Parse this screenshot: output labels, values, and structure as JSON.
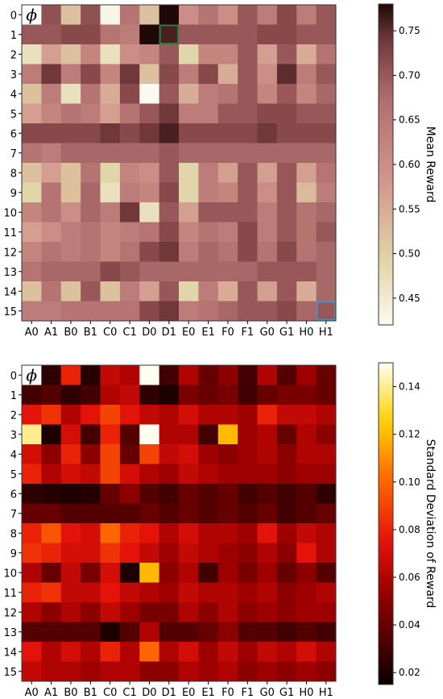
{
  "chart_data": [
    {
      "type": "heatmap",
      "colormap": "pink",
      "rows": [
        "0",
        "1",
        "2",
        "3",
        "4",
        "5",
        "6",
        "7",
        "8",
        "9",
        "10",
        "11",
        "12",
        "13",
        "14",
        "15"
      ],
      "columns": [
        "A0",
        "A1",
        "B0",
        "B1",
        "C0",
        "C1",
        "D0",
        "D1",
        "E0",
        "E1",
        "F0",
        "F1",
        "G0",
        "G1",
        "H0",
        "H1"
      ],
      "values": [
        [
          null,
          0.71,
          0.52,
          0.71,
          0.43,
          0.66,
          0.52,
          0.78,
          0.6,
          0.66,
          0.6,
          0.7,
          0.64,
          0.72,
          0.64,
          0.7
        ],
        [
          0.7,
          0.7,
          0.72,
          0.72,
          0.66,
          0.64,
          0.8,
          0.76,
          0.7,
          0.7,
          0.7,
          0.7,
          0.72,
          0.72,
          0.7,
          0.7
        ],
        [
          0.47,
          0.57,
          0.52,
          0.62,
          0.47,
          0.6,
          0.62,
          0.7,
          0.49,
          0.62,
          0.62,
          0.7,
          0.57,
          0.7,
          0.55,
          0.66
        ],
        [
          0.64,
          0.74,
          0.64,
          0.72,
          0.62,
          0.74,
          0.52,
          0.72,
          0.64,
          0.72,
          0.55,
          0.7,
          0.6,
          0.75,
          0.64,
          0.7
        ],
        [
          0.52,
          0.64,
          0.47,
          0.66,
          0.55,
          0.72,
          0.4,
          0.7,
          0.55,
          0.64,
          0.66,
          0.7,
          0.62,
          0.7,
          0.62,
          0.68
        ],
        [
          0.57,
          0.62,
          0.66,
          0.64,
          0.57,
          0.66,
          0.7,
          0.74,
          0.64,
          0.64,
          0.7,
          0.7,
          0.72,
          0.72,
          0.7,
          0.7
        ],
        [
          0.72,
          0.72,
          0.72,
          0.72,
          0.74,
          0.72,
          0.74,
          0.76,
          0.72,
          0.72,
          0.72,
          0.72,
          0.74,
          0.72,
          0.72,
          0.72
        ],
        [
          0.66,
          0.64,
          0.68,
          0.68,
          0.68,
          0.68,
          0.68,
          0.7,
          0.68,
          0.68,
          0.68,
          0.68,
          0.68,
          0.68,
          0.68,
          0.68
        ],
        [
          0.52,
          0.57,
          0.52,
          0.66,
          0.49,
          0.62,
          0.6,
          0.7,
          0.49,
          0.64,
          0.57,
          0.7,
          0.57,
          0.7,
          0.57,
          0.66
        ],
        [
          0.49,
          0.66,
          0.52,
          0.68,
          0.47,
          0.64,
          0.62,
          0.72,
          0.49,
          0.64,
          0.62,
          0.7,
          0.6,
          0.7,
          0.53,
          0.64
        ],
        [
          0.62,
          0.66,
          0.6,
          0.68,
          0.64,
          0.74,
          0.47,
          0.7,
          0.57,
          0.7,
          0.7,
          0.7,
          0.64,
          0.7,
          0.66,
          0.68
        ],
        [
          0.57,
          0.6,
          0.64,
          0.66,
          0.62,
          0.64,
          0.66,
          0.72,
          0.62,
          0.66,
          0.64,
          0.72,
          0.64,
          0.7,
          0.66,
          0.7
        ],
        [
          0.62,
          0.66,
          0.64,
          0.66,
          0.62,
          0.66,
          0.72,
          0.74,
          0.64,
          0.68,
          0.66,
          0.72,
          0.66,
          0.72,
          0.66,
          0.68
        ],
        [
          0.66,
          0.68,
          0.68,
          0.68,
          0.72,
          0.7,
          0.68,
          0.68,
          0.68,
          0.68,
          0.68,
          0.68,
          0.7,
          0.7,
          0.7,
          0.68
        ],
        [
          0.52,
          0.66,
          0.52,
          0.7,
          0.52,
          0.64,
          0.57,
          0.7,
          0.49,
          0.64,
          0.55,
          0.7,
          0.57,
          0.7,
          0.55,
          0.68
        ],
        [
          0.64,
          0.64,
          0.66,
          0.66,
          0.66,
          0.66,
          0.72,
          0.74,
          0.64,
          0.66,
          0.68,
          0.7,
          0.7,
          0.72,
          0.68,
          0.7
        ]
      ],
      "colorbar": {
        "label": "Mean Reward",
        "range": [
          0.42,
          0.78
        ],
        "ticks": [
          0.45,
          0.5,
          0.55,
          0.6,
          0.65,
          0.7,
          0.75
        ],
        "tick_labels": [
          "0.45",
          "0.50",
          "0.55",
          "0.60",
          "0.65",
          "0.70",
          "0.75"
        ]
      },
      "corner_symbol": "ϕ",
      "highlights": [
        {
          "row": 1,
          "col": 7,
          "color": "#1f8a3a"
        },
        {
          "row": 15,
          "col": 15,
          "color": "#3a9ad9"
        }
      ]
    },
    {
      "type": "heatmap",
      "colormap": "hot",
      "rows": [
        "0",
        "1",
        "2",
        "3",
        "4",
        "5",
        "6",
        "7",
        "8",
        "9",
        "10",
        "11",
        "12",
        "13",
        "14",
        "15"
      ],
      "columns": [
        "A0",
        "A1",
        "B0",
        "B1",
        "C0",
        "C1",
        "D0",
        "D1",
        "E0",
        "E1",
        "F0",
        "F1",
        "G0",
        "G1",
        "H0",
        "H1"
      ],
      "values": [
        [
          null,
          0.025,
          0.08,
          0.022,
          0.065,
          0.06,
          0.15,
          0.03,
          0.06,
          0.04,
          0.05,
          0.03,
          0.06,
          0.035,
          0.055,
          0.04
        ],
        [
          0.03,
          0.035,
          0.025,
          0.03,
          0.06,
          0.065,
          0.025,
          0.02,
          0.045,
          0.04,
          0.045,
          0.03,
          0.04,
          0.045,
          0.045,
          0.04
        ],
        [
          0.075,
          0.085,
          0.06,
          0.075,
          0.09,
          0.075,
          0.065,
          0.06,
          0.07,
          0.06,
          0.06,
          0.055,
          0.08,
          0.065,
          0.065,
          0.06
        ],
        [
          0.14,
          0.02,
          0.07,
          0.03,
          0.08,
          0.035,
          0.15,
          0.06,
          0.06,
          0.03,
          0.12,
          0.055,
          0.06,
          0.04,
          0.06,
          0.05
        ],
        [
          0.07,
          0.05,
          0.08,
          0.05,
          0.09,
          0.04,
          0.09,
          0.065,
          0.07,
          0.055,
          0.05,
          0.055,
          0.06,
          0.05,
          0.06,
          0.06
        ],
        [
          0.08,
          0.06,
          0.07,
          0.065,
          0.09,
          0.07,
          0.06,
          0.055,
          0.065,
          0.06,
          0.055,
          0.055,
          0.055,
          0.05,
          0.055,
          0.055
        ],
        [
          0.025,
          0.022,
          0.02,
          0.022,
          0.04,
          0.05,
          0.035,
          0.03,
          0.04,
          0.035,
          0.04,
          0.03,
          0.035,
          0.03,
          0.035,
          0.025
        ],
        [
          0.04,
          0.04,
          0.035,
          0.035,
          0.035,
          0.035,
          0.04,
          0.035,
          0.04,
          0.035,
          0.04,
          0.035,
          0.04,
          0.03,
          0.035,
          0.04
        ],
        [
          0.08,
          0.095,
          0.075,
          0.07,
          0.1,
          0.08,
          0.075,
          0.06,
          0.07,
          0.06,
          0.06,
          0.055,
          0.075,
          0.055,
          0.065,
          0.06
        ],
        [
          0.085,
          0.08,
          0.07,
          0.07,
          0.085,
          0.075,
          0.065,
          0.055,
          0.065,
          0.06,
          0.055,
          0.05,
          0.06,
          0.05,
          0.075,
          0.06
        ],
        [
          0.06,
          0.04,
          0.065,
          0.045,
          0.07,
          0.02,
          0.12,
          0.05,
          0.06,
          0.03,
          0.055,
          0.045,
          0.055,
          0.04,
          0.05,
          0.035
        ],
        [
          0.08,
          0.085,
          0.065,
          0.065,
          0.075,
          0.065,
          0.06,
          0.055,
          0.065,
          0.06,
          0.06,
          0.055,
          0.06,
          0.05,
          0.055,
          0.06
        ],
        [
          0.06,
          0.05,
          0.06,
          0.05,
          0.065,
          0.055,
          0.045,
          0.045,
          0.06,
          0.05,
          0.06,
          0.05,
          0.055,
          0.05,
          0.055,
          0.055
        ],
        [
          0.035,
          0.035,
          0.035,
          0.035,
          0.02,
          0.035,
          0.06,
          0.035,
          0.035,
          0.04,
          0.05,
          0.035,
          0.035,
          0.03,
          0.035,
          0.03
        ],
        [
          0.075,
          0.06,
          0.07,
          0.06,
          0.08,
          0.06,
          0.1,
          0.06,
          0.07,
          0.055,
          0.065,
          0.055,
          0.065,
          0.06,
          0.07,
          0.06
        ],
        [
          0.065,
          0.06,
          0.06,
          0.055,
          0.06,
          0.06,
          0.05,
          0.05,
          0.06,
          0.055,
          0.06,
          0.05,
          0.055,
          0.05,
          0.055,
          0.05
        ]
      ],
      "colorbar": {
        "label": "Standard Deviation of Reward",
        "range": [
          0.015,
          0.15
        ],
        "ticks": [
          0.02,
          0.04,
          0.06,
          0.08,
          0.1,
          0.12,
          0.14
        ],
        "tick_labels": [
          "0.02",
          "0.04",
          "0.06",
          "0.08",
          "0.10",
          "0.12",
          "0.14"
        ]
      },
      "corner_symbol": "ϕ",
      "highlights": []
    }
  ]
}
